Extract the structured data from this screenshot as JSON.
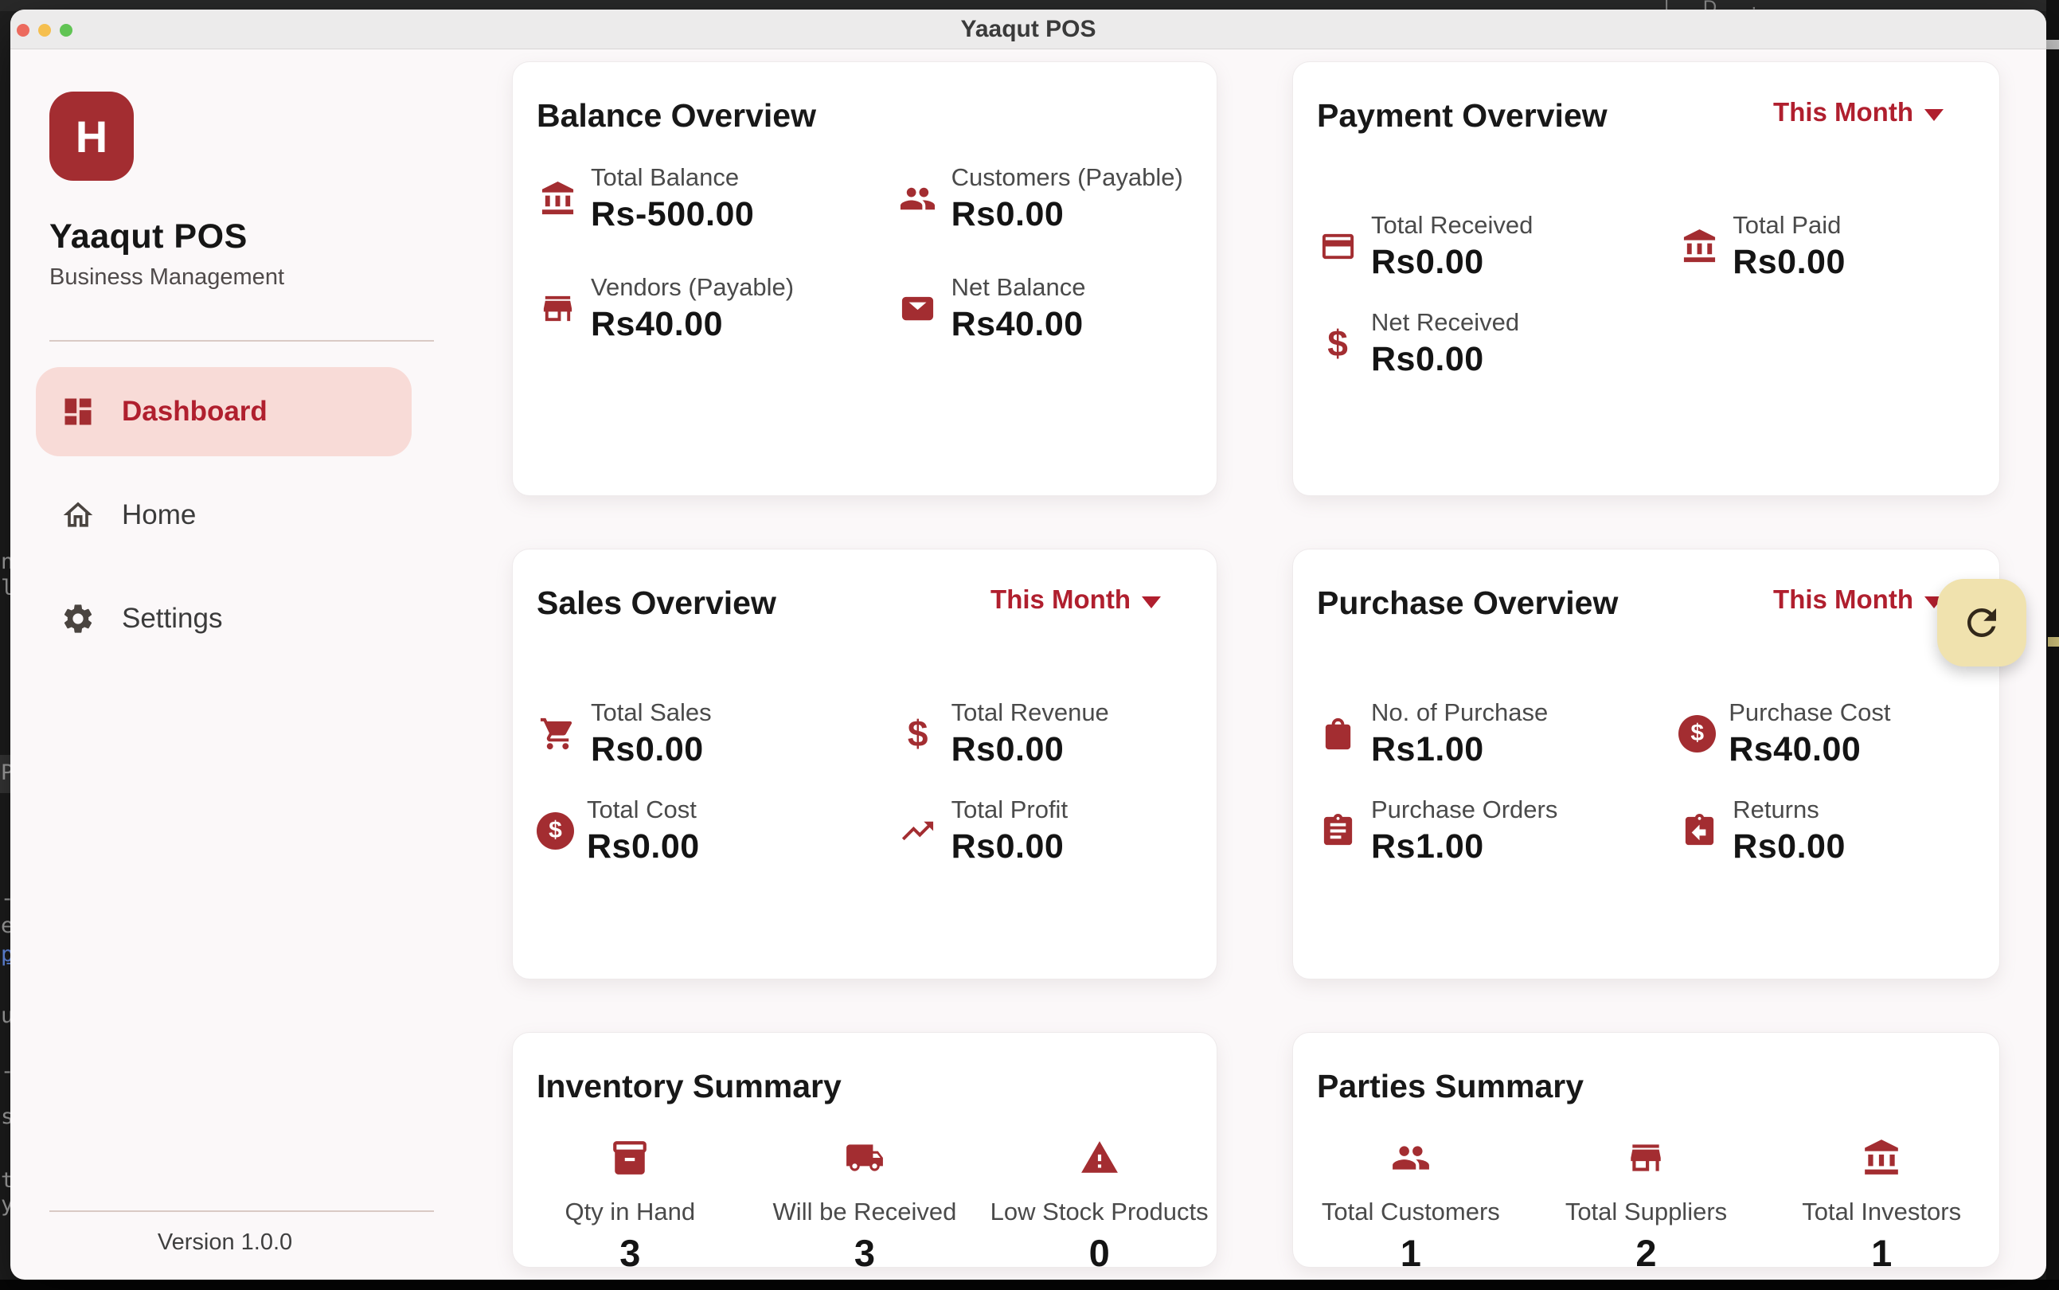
{
  "window": {
    "title": "Yaaqut POS"
  },
  "desktop": {
    "top_fragments": "| D ·",
    "left_fragments": [
      "n",
      "l",
      "P",
      "-",
      "e",
      "p",
      "u",
      "-",
      "s",
      "t",
      "y"
    ]
  },
  "sidebar": {
    "logo_letter": "H",
    "app_name": "Yaaqut POS",
    "app_subtitle": "Business Management",
    "nav": [
      {
        "label": "Dashboard",
        "icon": "dashboard",
        "active": true
      },
      {
        "label": "Home",
        "icon": "home",
        "active": false
      },
      {
        "label": "Settings",
        "icon": "settings",
        "active": false
      }
    ],
    "version": "Version 1.0.0"
  },
  "cards": [
    {
      "id": "balance-overview",
      "title": "Balance Overview",
      "filter": null,
      "layout": "grid",
      "items": [
        {
          "icon": "bank",
          "label": "Total Balance",
          "value": "Rs-500.00"
        },
        {
          "icon": "people",
          "label": "Customers (Payable)",
          "value": "Rs0.00"
        },
        {
          "icon": "storefront",
          "label": "Vendors (Payable)",
          "value": "Rs40.00"
        },
        {
          "icon": "wallet",
          "label": "Net Balance",
          "value": "Rs40.00"
        }
      ]
    },
    {
      "id": "payment-overview",
      "title": "Payment Overview",
      "filter": "This Month",
      "layout": "grid",
      "items": [
        {
          "icon": "credit-card",
          "label": "Total Received",
          "value": "Rs0.00"
        },
        {
          "icon": "bank",
          "label": "Total Paid",
          "value": "Rs0.00"
        },
        {
          "icon": "dollar",
          "label": "Net Received",
          "value": "Rs0.00"
        }
      ]
    },
    {
      "id": "sales-overview",
      "title": "Sales Overview",
      "filter": "This Month",
      "layout": "grid",
      "items": [
        {
          "icon": "cart",
          "label": "Total Sales",
          "value": "Rs0.00"
        },
        {
          "icon": "dollar",
          "label": "Total Revenue",
          "value": "Rs0.00"
        },
        {
          "icon": "dollar-circle",
          "label": "Total Cost",
          "value": "Rs0.00"
        },
        {
          "icon": "trending-up",
          "label": "Total Profit",
          "value": "Rs0.00"
        }
      ]
    },
    {
      "id": "purchase-overview",
      "title": "Purchase Overview",
      "filter": "This Month",
      "layout": "grid",
      "items": [
        {
          "icon": "shopping-bag",
          "label": "No. of Purchase",
          "value": "Rs1.00"
        },
        {
          "icon": "dollar-circle",
          "label": "Purchase Cost",
          "value": "Rs40.00"
        },
        {
          "icon": "clipboard",
          "label": "Purchase Orders",
          "value": "Rs1.00"
        },
        {
          "icon": "clipboard-return",
          "label": "Returns",
          "value": "Rs0.00"
        }
      ]
    },
    {
      "id": "inventory-summary",
      "title": "Inventory Summary",
      "filter": null,
      "layout": "stats",
      "items": [
        {
          "icon": "inventory-box",
          "label": "Qty in Hand",
          "value": "3"
        },
        {
          "icon": "truck",
          "label": "Will be Received",
          "value": "3"
        },
        {
          "icon": "warning-triangle",
          "label": "Low Stock Products",
          "value": "0"
        }
      ]
    },
    {
      "id": "parties-summary",
      "title": "Parties Summary",
      "filter": null,
      "layout": "stats",
      "items": [
        {
          "icon": "people",
          "label": "Total Customers",
          "value": "1"
        },
        {
          "icon": "storefront",
          "label": "Total Suppliers",
          "value": "2"
        },
        {
          "icon": "bank",
          "label": "Total Investors",
          "value": "1"
        }
      ]
    }
  ],
  "floating_refresh": {
    "icon": "refresh"
  },
  "colors": {
    "accent_icon": "#A32D31",
    "accent_text": "#B01F2E",
    "active_pill": "#F8DBD7",
    "refresh_bg": "#F0E2AE",
    "traffic_red": "#EC6A5E",
    "traffic_yellow": "#F5BF4F",
    "traffic_green": "#61C454"
  }
}
